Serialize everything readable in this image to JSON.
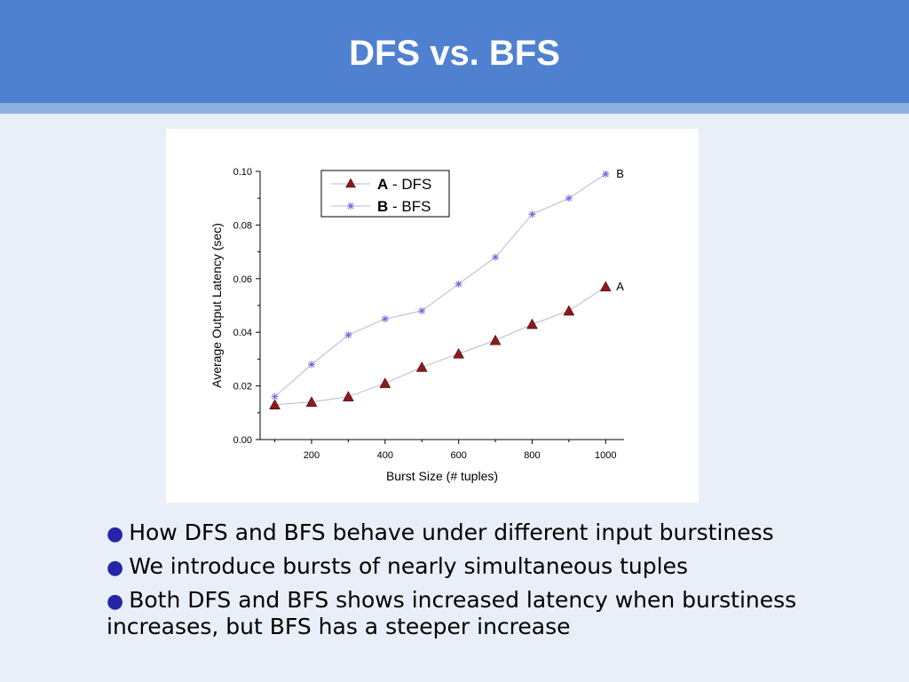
{
  "slide": {
    "title": "DFS vs. BFS",
    "bullets": [
      "How DFS and BFS behave under different input burstiness",
      "We introduce bursts of nearly simultaneous tuples",
      "Both DFS and BFS shows increased latency when burstiness increases, but BFS has a steeper increase"
    ]
  },
  "colors": {
    "header": "#4f81d0",
    "background": "#e9eff8",
    "series_a": "#8b1a1a",
    "series_b": "#8c8ce0",
    "bullet": "#2525a8"
  },
  "chart_data": {
    "type": "line",
    "xlabel": "Burst Size (# tuples)",
    "ylabel": "Average Output Latency (sec)",
    "xlim": [
      100,
      1000
    ],
    "ylim": [
      0,
      0.1
    ],
    "xticks": [
      200,
      400,
      600,
      800,
      1000
    ],
    "xtick_labels": [
      "200",
      "400",
      "600",
      "800",
      "1000"
    ],
    "yticks": [
      0,
      0.02,
      0.04,
      0.06,
      0.08,
      0.1
    ],
    "ytick_labels": [
      "0.00",
      "0.02",
      "0.04",
      "0.06",
      "0.08",
      "0.10"
    ],
    "legend_position": "top-left",
    "x": [
      100,
      200,
      300,
      400,
      500,
      600,
      700,
      800,
      900,
      1000
    ],
    "series": [
      {
        "legend_key": "A",
        "legend_text": " - DFS",
        "end_label": "A",
        "marker": "triangle",
        "values": [
          0.013,
          0.014,
          0.016,
          0.021,
          0.027,
          0.032,
          0.037,
          0.043,
          0.048,
          0.057
        ]
      },
      {
        "legend_key": "B",
        "legend_text": " - BFS",
        "end_label": "B",
        "marker": "star",
        "values": [
          0.016,
          0.028,
          0.039,
          0.045,
          0.048,
          0.058,
          0.068,
          0.084,
          0.09,
          0.099
        ]
      }
    ]
  }
}
